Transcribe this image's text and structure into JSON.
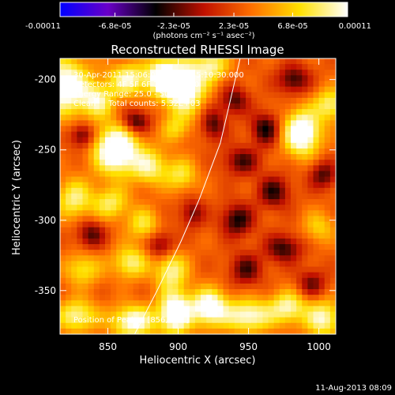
{
  "colorbar": {
    "tick_labels": [
      "-0.00011",
      "-6.8e-05",
      "-2.3e-05",
      "2.3e-05",
      "6.8e-05",
      "0.00011"
    ],
    "tick_values": [
      -0.00011,
      -6.8e-05,
      -2.3e-05,
      2.3e-05,
      6.8e-05,
      0.00011
    ],
    "range": [
      -0.00011,
      0.00011
    ],
    "unit_label": "(photons cm⁻² s⁻¹ asec⁻²)",
    "colormap": [
      "#0000ff",
      "#6a00c8",
      "#000000",
      "#c01000",
      "#ff7000",
      "#ffe000",
      "#ffffff"
    ]
  },
  "chart_data": {
    "type": "heatmap",
    "title": "Reconstructed RHESSI Image",
    "xlabel": "Heliocentric X (arcsec)",
    "ylabel": "Heliocentric Y (arcsec)",
    "xlim": [
      816,
      1012
    ],
    "ylim": [
      -381,
      -185
    ],
    "x_ticks": [
      850,
      900,
      950,
      1000
    ],
    "y_ticks": [
      -350,
      -300,
      -250,
      -200
    ],
    "annotations": [
      "30-Apr-2011 15:06:00.000 to 15:10:30.000",
      "Detectors: 4F 5F 6F 7F 8F; Att 0",
      "Energy Range: 25.0 - 50.0 keV",
      "Clean     Total counts: 5.32E+03",
      "Position of Peak = [856,-251]"
    ],
    "limb_curve": [
      [
        869,
        -381
      ],
      [
        885,
        -350
      ],
      [
        902,
        -315
      ],
      [
        915,
        -285
      ],
      [
        930,
        -245
      ],
      [
        944,
        -185
      ]
    ],
    "blobs": [
      {
        "x": 856,
        "y": -250,
        "sx": 11,
        "sy": 12,
        "v": 1.0
      },
      {
        "x": 820,
        "y": -205,
        "sx": 12,
        "sy": 14,
        "v": 0.85
      },
      {
        "x": 843,
        "y": -215,
        "sx": 8,
        "sy": 8,
        "v": 0.55
      },
      {
        "x": 865,
        "y": -200,
        "sx": 10,
        "sy": 8,
        "v": 0.65
      },
      {
        "x": 888,
        "y": -198,
        "sx": 7,
        "sy": 9,
        "v": 0.75
      },
      {
        "x": 904,
        "y": -205,
        "sx": 10,
        "sy": 13,
        "v": 0.98
      },
      {
        "x": 924,
        "y": -190,
        "sx": 8,
        "sy": 8,
        "v": 0.55
      },
      {
        "x": 898,
        "y": -235,
        "sx": 7,
        "sy": 7,
        "v": 0.35
      },
      {
        "x": 880,
        "y": -262,
        "sx": 9,
        "sy": 9,
        "v": 0.55
      },
      {
        "x": 902,
        "y": -268,
        "sx": 8,
        "sy": 8,
        "v": 0.45
      },
      {
        "x": 826,
        "y": -285,
        "sx": 9,
        "sy": 10,
        "v": 0.55
      },
      {
        "x": 852,
        "y": -288,
        "sx": 9,
        "sy": 8,
        "v": 0.5
      },
      {
        "x": 875,
        "y": -303,
        "sx": 8,
        "sy": 8,
        "v": 0.45
      },
      {
        "x": 832,
        "y": -335,
        "sx": 9,
        "sy": 8,
        "v": 0.45
      },
      {
        "x": 866,
        "y": -330,
        "sx": 9,
        "sy": 8,
        "v": 0.55
      },
      {
        "x": 895,
        "y": -336,
        "sx": 8,
        "sy": 10,
        "v": 0.6
      },
      {
        "x": 828,
        "y": -368,
        "sx": 10,
        "sy": 8,
        "v": 0.6
      },
      {
        "x": 868,
        "y": -372,
        "sx": 11,
        "sy": 8,
        "v": 0.75
      },
      {
        "x": 898,
        "y": -366,
        "sx": 8,
        "sy": 10,
        "v": 0.95
      },
      {
        "x": 922,
        "y": -362,
        "sx": 9,
        "sy": 9,
        "v": 0.85
      },
      {
        "x": 950,
        "y": -368,
        "sx": 12,
        "sy": 8,
        "v": 0.7
      },
      {
        "x": 978,
        "y": -362,
        "sx": 9,
        "sy": 8,
        "v": 0.6
      },
      {
        "x": 1003,
        "y": -370,
        "sx": 9,
        "sy": 9,
        "v": 0.65
      },
      {
        "x": 988,
        "y": -238,
        "sx": 9,
        "sy": 11,
        "v": 0.95
      },
      {
        "x": 1008,
        "y": -218,
        "sx": 8,
        "sy": 8,
        "v": 0.55
      },
      {
        "x": 1000,
        "y": -305,
        "sx": 8,
        "sy": 8,
        "v": 0.35
      },
      {
        "x": 940,
        "y": -215,
        "sx": 7,
        "sy": 7,
        "v": -0.45
      },
      {
        "x": 962,
        "y": -235,
        "sx": 7,
        "sy": 8,
        "v": -0.55
      },
      {
        "x": 982,
        "y": -200,
        "sx": 8,
        "sy": 7,
        "v": -0.5
      },
      {
        "x": 945,
        "y": -258,
        "sx": 9,
        "sy": 7,
        "v": -0.45
      },
      {
        "x": 968,
        "y": -280,
        "sx": 8,
        "sy": 8,
        "v": -0.5
      },
      {
        "x": 942,
        "y": -300,
        "sx": 8,
        "sy": 8,
        "v": -0.55
      },
      {
        "x": 975,
        "y": -320,
        "sx": 9,
        "sy": 7,
        "v": -0.5
      },
      {
        "x": 948,
        "y": -335,
        "sx": 8,
        "sy": 8,
        "v": -0.45
      },
      {
        "x": 870,
        "y": -230,
        "sx": 7,
        "sy": 6,
        "v": -0.55
      },
      {
        "x": 832,
        "y": -240,
        "sx": 6,
        "sy": 6,
        "v": -0.5
      },
      {
        "x": 838,
        "y": -310,
        "sx": 7,
        "sy": 7,
        "v": -0.45
      },
      {
        "x": 888,
        "y": -318,
        "sx": 7,
        "sy": 7,
        "v": -0.45
      },
      {
        "x": 925,
        "y": -232,
        "sx": 6,
        "sy": 8,
        "v": -0.45
      },
      {
        "x": 1003,
        "y": -268,
        "sx": 7,
        "sy": 7,
        "v": -0.45
      },
      {
        "x": 910,
        "y": -295,
        "sx": 6,
        "sy": 7,
        "v": -0.4
      },
      {
        "x": 995,
        "y": -345,
        "sx": 7,
        "sy": 7,
        "v": -0.4
      }
    ],
    "base_level": 0.3
  },
  "footer": {
    "timestamp": "11-Aug-2013 08:09"
  }
}
